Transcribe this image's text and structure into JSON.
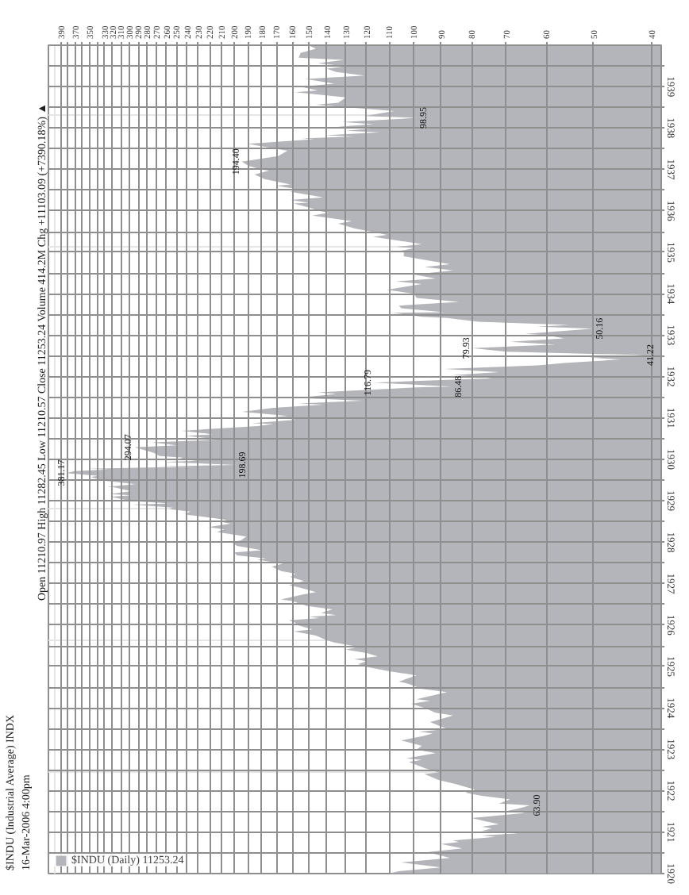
{
  "chart_data": {
    "type": "area",
    "orientation": "horizontal",
    "log": "x",
    "grid": true,
    "legend": "bottom left",
    "title": "$INDU (Industrial Average) INDX",
    "subtitle": "16-Mar-2006 4:00pm",
    "xlim": [
      410,
      38.5
    ],
    "xticks": [
      40,
      50,
      60,
      70,
      80,
      90,
      100,
      110,
      120,
      130,
      140,
      150,
      160,
      170,
      180,
      190,
      200,
      210,
      220,
      230,
      240,
      250,
      260,
      270,
      280,
      290,
      300,
      310,
      320,
      330,
      {
        "value": 340,
        "label": null
      },
      350,
      {
        "value": 360,
        "label": null
      },
      370,
      {
        "value": 380,
        "label": null
      },
      390
    ],
    "ylim": [
      "1920-01-01",
      "1940-01-01"
    ],
    "yticks": [
      {
        "value": "1920-01-01",
        "label": "1920"
      },
      {
        "value": "1920-07-01",
        "label": null
      },
      {
        "value": "1921-01-01",
        "label": "1921"
      },
      {
        "value": "1921-07-01",
        "label": null
      },
      {
        "value": "1922-01-01",
        "label": "1922"
      },
      {
        "value": "1922-07-01",
        "label": null
      },
      {
        "value": "1923-01-01",
        "label": "1923"
      },
      {
        "value": "1923-07-01",
        "label": null
      },
      {
        "value": "1924-01-01",
        "label": "1924"
      },
      {
        "value": "1924-07-01",
        "label": null
      },
      {
        "value": "1925-01-01",
        "label": "1925"
      },
      {
        "value": "1925-07-01",
        "label": null
      },
      {
        "value": "1926-01-01",
        "label": "1926"
      },
      {
        "value": "1926-07-01",
        "label": null
      },
      {
        "value": "1927-01-01",
        "label": "1927"
      },
      {
        "value": "1927-07-01",
        "label": null
      },
      {
        "value": "1928-01-01",
        "label": "1928"
      },
      {
        "value": "1928-07-01",
        "label": null
      },
      {
        "value": "1929-01-01",
        "label": "1929"
      },
      {
        "value": "1929-07-01",
        "label": null
      },
      {
        "value": "1930-01-01",
        "label": "1930"
      },
      {
        "value": "1930-07-01",
        "label": null
      },
      {
        "value": "1931-01-01",
        "label": "1931"
      },
      {
        "value": "1931-07-01",
        "label": null
      },
      {
        "value": "1932-01-01",
        "label": "1932"
      },
      {
        "value": "1932-07-01",
        "label": null
      },
      {
        "value": "1933-01-01",
        "label": "1933"
      },
      {
        "value": "1933-07-01",
        "label": null
      },
      {
        "value": "1934-01-01",
        "label": "1934"
      },
      {
        "value": "1934-07-01",
        "label": null
      },
      {
        "value": "1935-01-01",
        "label": "1935"
      },
      {
        "value": "1935-07-01",
        "label": null
      },
      {
        "value": "1936-01-01",
        "label": "1936"
      },
      {
        "value": "1936-07-01",
        "label": null
      },
      {
        "value": "1937-01-01",
        "label": "1937"
      },
      {
        "value": "1937-07-01",
        "label": null
      },
      {
        "value": "1938-01-01",
        "label": "1938"
      },
      {
        "value": "1938-07-01",
        "label": null
      },
      {
        "value": "1939-01-01",
        "label": "1939"
      },
      {
        "value": "1939-07-01",
        "label": null
      }
    ],
    "series": [
      {
        "name": "$INDU (Daily) 11253.24",
        "color": "#b4b5ba",
        "x": [
          "1920-01-03",
          "1920-01-22",
          "1920-02-25",
          "1920-04-08",
          "1920-05-19",
          "1920-07-08",
          "1920-08-10",
          "1920-09-17",
          "1920-10-05",
          "1920-10-20",
          "1920-11-19",
          "1920-12-02",
          "1920-12-21",
          "1921-01-11",
          "1921-02-03",
          "1921-02-16",
          "1921-03-11",
          "1921-04-06",
          "1921-05-05",
          "1921-06-20",
          "1921-07-05",
          "1921-07-26",
          "1921-08-24",
          "1921-09-10",
          "1921-10-17",
          "1921-11-16",
          "1921-12-15",
          "1922-01-10",
          "1922-02-28",
          "1922-04-06",
          "1922-05-29",
          "1922-06-12",
          "1922-07-20",
          "1922-09-11",
          "1922-09-30",
          "1922-10-14",
          "1922-11-27",
          "1922-12-30",
          "1923-01-31",
          "1923-03-20",
          "1923-04-30",
          "1923-05-21",
          "1923-06-04",
          "1923-06-29",
          "1923-08-29",
          "1923-09-11",
          "1923-10-27",
          "1923-11-20",
          "1923-12-31",
          "1924-02-06",
          "1924-03-03",
          "1924-03-18",
          "1924-05-20",
          "1924-06-16",
          "1924-07-31",
          "1924-08-20",
          "1924-10-14",
          "1924-11-20",
          "1924-12-31",
          "1925-01-22",
          "1925-02-16",
          "1925-03-06",
          "1925-03-30",
          "1925-04-30",
          "1925-05-29",
          "1925-06-23",
          "1925-07-31",
          "1925-08-20",
          "1925-09-30",
          "1925-11-06",
          "1925-11-24",
          "1925-12-31",
          "1926-01-20",
          "1926-02-11",
          "1926-03-03",
          "1926-03-15",
          "1926-03-30",
          "1926-04-17",
          "1926-05-19",
          "1926-06-18",
          "1926-07-31",
          "1926-08-14",
          "1926-09-25",
          "1926-10-19",
          "1926-11-25",
          "1926-12-18",
          "1927-01-25",
          "1927-02-28",
          "1927-03-30",
          "1927-04-22",
          "1927-05-31",
          "1927-06-27",
          "1927-07-30",
          "1927-08-12",
          "1927-09-07",
          "1927-10-03",
          "1927-10-22",
          "1927-11-30",
          "1927-12-31",
          "1928-01-18",
          "1928-02-20",
          "1928-03-31",
          "1928-04-23",
          "1928-05-14",
          "1928-06-12",
          "1928-06-30",
          "1928-07-16",
          "1928-08-31",
          "1928-09-07",
          "1928-09-27",
          "1928-10-19",
          "1928-11-01",
          "1928-11-28",
          "1928-12-08",
          "1928-12-31",
          "1929-02-05",
          "1929-02-18",
          "1929-03-01",
          "1929-03-26",
          "1929-04-30",
          "1929-05-04",
          "1929-05-27",
          "1929-06-29",
          "1929-07-31",
          "1929-08-09",
          "1929-08-31",
          "1929-09-03",
          "1929-09-19",
          "1929-10-04",
          "1929-10-10",
          "1929-10-29",
          "1929-10-31",
          "1929-11-13",
          "1929-12-09",
          "1929-12-20",
          "1929-12-31",
          "1930-01-17",
          "1930-01-31",
          "1930-02-28",
          "1930-03-31",
          "1930-04-17",
          "1930-05-05",
          "1930-05-31",
          "1930-06-24",
          "1930-07-28",
          "1930-08-09",
          "1930-09-10",
          "1930-10-22",
          "1930-11-10",
          "1930-11-15",
          "1930-12-16",
          "1930-12-31",
          "1931-01-08",
          "1931-01-19",
          "1931-02-24",
          "1931-03-31",
          "1931-04-29",
          "1931-05-09",
          "1931-06-02",
          "1931-06-27",
          "1931-07-31",
          "1931-08-15",
          "1931-09-21",
          "1931-09-30",
          "1931-10-05",
          "1931-11-09",
          "1931-12-17",
          "1931-12-31",
          "1932-01-14",
          "1932-02-10",
          "1932-03-08",
          "1932-04-08",
          "1932-04-30",
          "1932-05-31",
          "1932-06-16",
          "1932-07-08",
          "1932-08-08",
          "1932-09-07",
          "1932-10-10",
          "1932-11-03",
          "1932-12-03",
          "1932-12-31",
          "1933-01-11",
          "1933-02-27",
          "1933-03-15",
          "1933-03-31",
          "1933-04-29",
          "1933-05-31",
          "1933-06-12",
          "1933-07-18",
          "1933-07-21",
          "1933-08-25",
          "1933-09-18",
          "1933-10-21",
          "1933-11-24",
          "1933-12-31",
          "1934-02-05",
          "1934-03-27",
          "1934-04-20",
          "1934-05-14",
          "1934-06-19",
          "1934-07-26",
          "1934-08-25",
          "1934-09-17",
          "1934-11-26",
          "1934-12-31",
          "1935-01-07",
          "1935-02-06",
          "1935-02-18",
          "1935-03-14",
          "1935-05-18",
          "1935-06-03",
          "1935-07-31",
          "1935-09-11",
          "1935-10-03",
          "1935-11-20",
          "1935-12-16",
          "1935-12-31",
          "1936-01-31",
          "1936-03-06",
          "1936-03-13",
          "1936-04-06",
          "1936-04-30",
          "1936-06-18",
          "1936-07-10",
          "1936-08-10",
          "1936-08-21",
          "1936-10-07",
          "1936-11-17",
          "1936-12-21",
          "1936-12-31",
          "1937-01-30",
          "1937-03-10",
          "1937-04-29",
          "1937-06-14",
          "1937-08-14",
          "1937-09-24",
          "1937-10-01",
          "1937-10-19",
          "1937-10-29",
          "1937-11-24",
          "1937-12-08",
          "1937-12-28",
          "1938-01-12",
          "1938-02-03",
          "1938-02-23",
          "1938-03-31",
          "1938-04-16",
          "1938-05-31",
          "1938-07-25",
          "1938-08-12",
          "1938-09-28",
          "1938-11-12",
          "1938-11-28",
          "1938-12-31",
          "1939-01-26",
          "1939-03-10",
          "1939-04-08",
          "1939-05-10",
          "1939-06-09",
          "1939-06-29",
          "1939-07-25",
          "1939-08-24",
          "1939-09-12",
          "1939-10-25",
          "1939-11-30",
          "1939-12-30"
        ],
        "values": [
          110,
          106,
          90,
          105,
          87,
          95,
          83,
          90,
          84,
          86,
          73,
          77,
          67,
          77,
          74,
          77,
          72,
          76,
          80,
          65,
          70,
          67,
          63.9,
          72,
          69,
          77,
          82,
          79,
          85,
          91,
          96,
          91,
          96,
          102,
          97,
          103,
          92,
          99,
          97,
          105,
          96,
          93,
          98,
          88,
          94,
          92,
          86,
          92,
          96,
          101,
          94,
          99,
          88,
          97,
          102,
          106,
          99,
          110,
          121,
          124,
          120,
          126,
          115,
          120,
          130,
          124,
          136,
          140,
          146,
          159,
          148,
          157,
          158,
          162,
          144,
          150,
          135,
          143,
          137,
          151,
          160,
          167,
          154,
          146,
          155,
          162,
          153,
          161,
          158,
          167,
          173,
          166,
          183,
          177,
          198,
          200,
          180,
          198,
          202,
          195,
          191,
          214,
          208,
          221,
          203,
          211,
          206,
          240,
          242,
          237,
          257,
          254,
          296,
          257,
          300,
          322,
          297,
          324,
          298,
          319,
          327,
          293,
          334,
          348,
          338,
          380,
          381.17,
          371,
          325,
          353,
          230,
          274,
          198.69,
          263,
          231,
          248,
          244,
          267,
          273,
          286,
          294.07,
          250,
          275,
          212,
          241,
          217,
          245,
          183,
          172,
          187,
          158,
          165,
          172,
          163,
          194,
          172,
          142,
          156,
          122,
          157,
          135,
          145,
          105,
          97,
          86.48,
          116.79,
          74,
          78,
          86,
          72,
          89,
          62,
          56,
          45,
          51,
          41.22,
          70,
          79.93,
          58,
          69,
          56,
          60,
          65,
          50.16,
          62,
          55,
          78,
          88,
          97,
          109,
          89,
          105,
          106,
          84,
          99,
          100,
          111,
          97,
          107,
          92,
          100,
          86,
          96,
          87,
          104,
          104,
          107,
          100,
          107,
          97,
          117,
          111,
          126,
          134,
          127,
          148,
          139,
          144,
          150,
          159,
          150,
          161,
          142,
          161,
          157,
          170,
          161,
          178,
          185,
          175,
          180,
          189,
          194.4,
          169,
          163,
          190,
          147,
          154,
          126,
          141,
          114,
          130,
          118,
          134,
          117,
          132,
          98.95,
          121,
          108,
          146,
          134,
          130,
          158,
          145,
          155,
          136,
          152,
          121,
          135,
          140,
          130,
          145,
          131,
          156,
          155,
          146,
          150
        ]
      }
    ],
    "annotations": [
      "Open 11210.97 High 11282.45 Low 11210.57 Close 11253.24 Volume 414.2M Chg +11103.09 (+7390.18%) ▲",
      {
        "text": "63.90",
        "x": 63.9,
        "y": "1921-08-24"
      },
      {
        "text": "381.17",
        "x": 381.17,
        "y": "1929-09-03"
      },
      {
        "text": "198.69",
        "x": 198.69,
        "y": "1929-11-13"
      },
      {
        "text": "294.07",
        "x": 294.07,
        "y": "1930-04-17"
      },
      {
        "text": "86.48",
        "x": 86.48,
        "y": "1931-10-05"
      },
      {
        "text": "116.79",
        "x": 116.79,
        "y": "1931-11-09"
      },
      {
        "text": "41.22",
        "x": 41.22,
        "y": "1932-07-08"
      },
      {
        "text": "79.93",
        "x": 79.93,
        "y": "1932-09-07"
      },
      {
        "text": "50.16",
        "x": 50.16,
        "y": "1933-02-27"
      },
      {
        "text": "194.40",
        "x": 194.4,
        "y": "1937-03-10"
      },
      {
        "text": "98.95",
        "x": 98.95,
        "y": "1938-03-31"
      }
    ]
  }
}
